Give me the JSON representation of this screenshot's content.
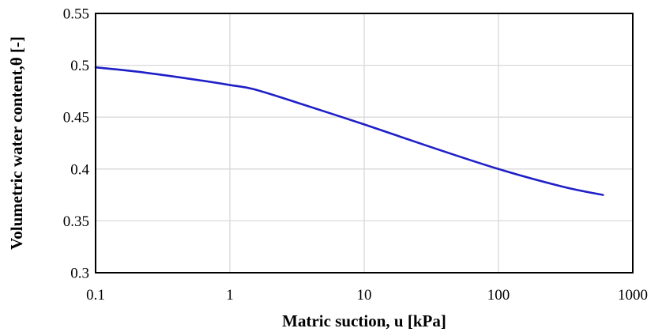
{
  "chart_data": {
    "type": "line",
    "title": "",
    "xlabel": "Matric suction, u [kPa]",
    "ylabel": "Volumetric water content,θ [-]",
    "x_scale": "log",
    "xlim": [
      0.1,
      1000
    ],
    "ylim": [
      0.3,
      0.55
    ],
    "x_ticks": [
      0.1,
      1,
      10,
      100,
      1000
    ],
    "x_tick_labels": [
      "0.1",
      "1",
      "10",
      "100",
      "1000"
    ],
    "y_ticks": [
      0.3,
      0.35,
      0.4,
      0.45,
      0.5,
      0.55
    ],
    "y_tick_labels": [
      "0.3",
      "0.35",
      "0.4",
      "0.45",
      "0.5",
      "0.55"
    ],
    "grid": true,
    "legend": "none",
    "series": [
      {
        "color": "#1f1fc8",
        "x": [
          0.1,
          0.2,
          0.5,
          1,
          1.5,
          3,
          10,
          30,
          100,
          300,
          600
        ],
        "y": [
          0.498,
          0.494,
          0.487,
          0.481,
          0.477,
          0.465,
          0.443,
          0.422,
          0.4,
          0.383,
          0.375
        ]
      }
    ]
  }
}
